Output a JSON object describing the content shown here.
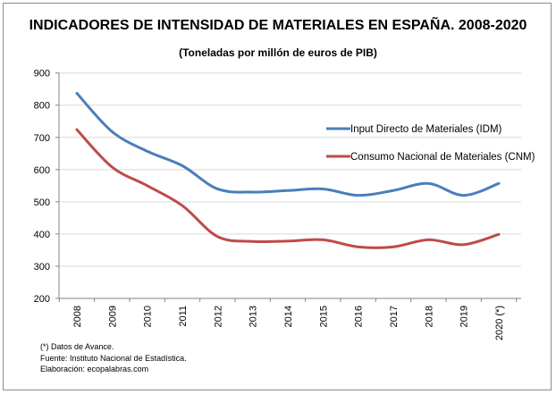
{
  "chart_data": {
    "type": "line",
    "title": "INDICADORES DE INTENSIDAD DE MATERIALES EN ESPAÑA. 2008-2020",
    "subtitle": "(Toneladas por millón de euros de PIB)",
    "categories": [
      "2008",
      "2009",
      "2010",
      "2011",
      "2012",
      "2013",
      "2014",
      "2015",
      "2016",
      "2017",
      "2018",
      "2019",
      "2020 (*)"
    ],
    "ylim": [
      200,
      900
    ],
    "yticks": [
      200,
      300,
      400,
      500,
      600,
      700,
      800,
      900
    ],
    "grid": true,
    "legend_position": "right",
    "series": [
      {
        "name": "Input Directo de Materiales (IDM)",
        "color": "#4a7ebb",
        "values": [
          837,
          718,
          657,
          612,
          540,
          530,
          535,
          540,
          520,
          535,
          557,
          520,
          557
        ]
      },
      {
        "name": "Consumo Nacional de Materiales (CNM)",
        "color": "#be4b48",
        "values": [
          724,
          608,
          550,
          488,
          392,
          377,
          378,
          382,
          360,
          360,
          382,
          367,
          399
        ]
      }
    ]
  },
  "notes": [
    "(*) Datos de Avance.",
    "Fuente: Instituto Nacional de Estadística.",
    "Elaboración: ecopalabras.com"
  ]
}
